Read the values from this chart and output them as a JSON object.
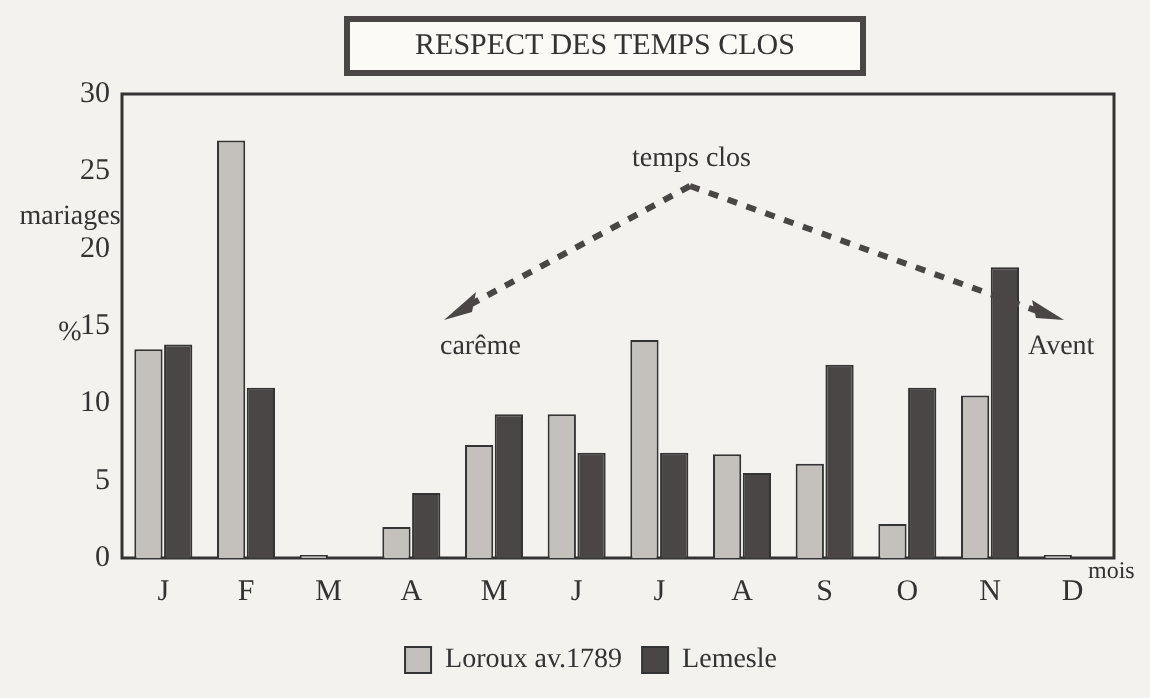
{
  "chart_data": {
    "type": "bar",
    "title": "RESPECT DES TEMPS CLOS",
    "ylabel": "mariages %",
    "xlabel": "mois",
    "categories": [
      "J",
      "F",
      "M",
      "A",
      "M",
      "J",
      "J",
      "A",
      "S",
      "O",
      "N",
      "D"
    ],
    "series": [
      {
        "name": "Loroux av.1789",
        "color": "#c4c0bc",
        "values": [
          13.5,
          27,
          0.2,
          2,
          7.3,
          9.3,
          14.1,
          6.7,
          6.1,
          2.2,
          10.5,
          0.2
        ]
      },
      {
        "name": "Lemesle",
        "color": "#4a4646",
        "values": [
          13.8,
          11,
          0,
          4.2,
          9.3,
          6.8,
          6.8,
          5.5,
          12.5,
          11,
          18.8,
          0
        ]
      }
    ],
    "ylim": [
      0,
      30
    ],
    "yticks": [
      0,
      5,
      10,
      15,
      20,
      25,
      30
    ],
    "grid": false,
    "legend": "bottom",
    "annotations": [
      "temps clos",
      "carême",
      "Avent"
    ]
  }
}
